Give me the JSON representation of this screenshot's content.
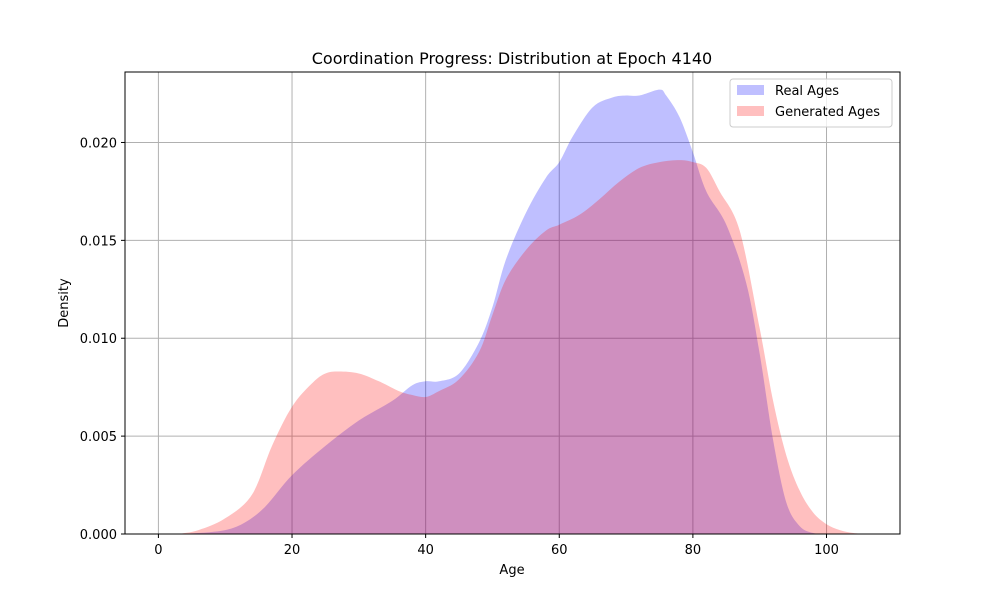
{
  "chart_data": {
    "type": "area",
    "title": "Coordination Progress: Distribution at Epoch 4140",
    "xlabel": "Age",
    "ylabel": "Density",
    "xlim": [
      -5,
      111
    ],
    "ylim": [
      0,
      0.0236
    ],
    "xticks": [
      0,
      20,
      40,
      60,
      80,
      100
    ],
    "yticks": [
      0.0,
      0.005,
      0.01,
      0.015,
      0.02
    ],
    "ytick_labels": [
      "0.000",
      "0.005",
      "0.010",
      "0.015",
      "0.020"
    ],
    "grid": true,
    "legend_position": "top-right",
    "series": [
      {
        "name": "Real Ages",
        "color": "#0000ff",
        "alpha": 0.25,
        "points": [
          [
            0,
            0
          ],
          [
            5,
            3e-05
          ],
          [
            10,
            0.0002
          ],
          [
            13,
            0.0006
          ],
          [
            16,
            0.0014
          ],
          [
            20,
            0.003
          ],
          [
            25,
            0.0045
          ],
          [
            30,
            0.0058
          ],
          [
            35,
            0.0068
          ],
          [
            38,
            0.0076
          ],
          [
            40,
            0.0078
          ],
          [
            42,
            0.0078
          ],
          [
            45,
            0.0082
          ],
          [
            48,
            0.0098
          ],
          [
            50,
            0.0116
          ],
          [
            52,
            0.014
          ],
          [
            55,
            0.0164
          ],
          [
            58,
            0.0182
          ],
          [
            60,
            0.019
          ],
          [
            62,
            0.0203
          ],
          [
            65,
            0.0218
          ],
          [
            68,
            0.0223
          ],
          [
            70,
            0.0224
          ],
          [
            72,
            0.0224
          ],
          [
            75,
            0.0227
          ],
          [
            76,
            0.0224
          ],
          [
            78,
            0.0213
          ],
          [
            80,
            0.0195
          ],
          [
            82,
            0.0175
          ],
          [
            85,
            0.0158
          ],
          [
            88,
            0.0128
          ],
          [
            90,
            0.0092
          ],
          [
            92,
            0.0048
          ],
          [
            94,
            0.0016
          ],
          [
            96,
            0.0004
          ],
          [
            98,
            5e-05
          ],
          [
            100,
            0
          ]
        ]
      },
      {
        "name": "Generated Ages",
        "color": "#ff0000",
        "alpha": 0.25,
        "points": [
          [
            3,
            0
          ],
          [
            6,
            0.0002
          ],
          [
            10,
            0.0008
          ],
          [
            14,
            0.002
          ],
          [
            17,
            0.0045
          ],
          [
            20,
            0.0065
          ],
          [
            23,
            0.0077
          ],
          [
            25,
            0.0082
          ],
          [
            27,
            0.0083
          ],
          [
            30,
            0.0082
          ],
          [
            33,
            0.0078
          ],
          [
            36,
            0.0073
          ],
          [
            38,
            0.0071
          ],
          [
            40,
            0.007
          ],
          [
            42,
            0.0073
          ],
          [
            45,
            0.0079
          ],
          [
            48,
            0.0093
          ],
          [
            50,
            0.0112
          ],
          [
            52,
            0.013
          ],
          [
            55,
            0.0145
          ],
          [
            58,
            0.0155
          ],
          [
            60,
            0.0158
          ],
          [
            63,
            0.0163
          ],
          [
            66,
            0.0171
          ],
          [
            69,
            0.018
          ],
          [
            72,
            0.0187
          ],
          [
            75,
            0.019
          ],
          [
            78,
            0.0191
          ],
          [
            80,
            0.019
          ],
          [
            82,
            0.0187
          ],
          [
            84,
            0.0175
          ],
          [
            87,
            0.0155
          ],
          [
            90,
            0.0105
          ],
          [
            92,
            0.0068
          ],
          [
            94,
            0.004
          ],
          [
            96,
            0.0022
          ],
          [
            98,
            0.0011
          ],
          [
            100,
            0.0005
          ],
          [
            102,
            0.0002
          ],
          [
            104,
            5e-05
          ],
          [
            106,
            0
          ]
        ]
      }
    ]
  }
}
